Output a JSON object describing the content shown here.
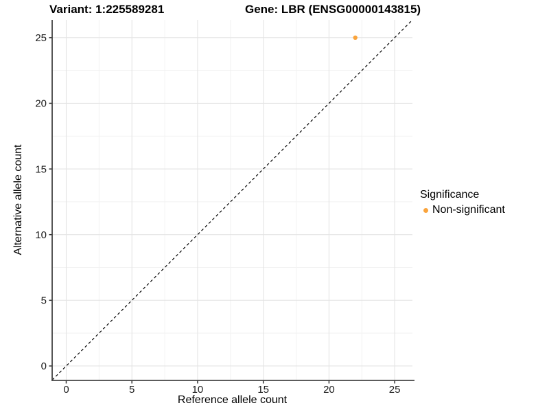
{
  "chart_data": {
    "type": "scatter",
    "titles": {
      "variant": "Variant: 1:225589281",
      "gene": "Gene: LBR (ENSG00000143815)"
    },
    "xlabel": "Reference allele count",
    "ylabel": "Alternative allele count",
    "xlim": [
      -1.07,
      26.35
    ],
    "ylim": [
      -1.1,
      26.35
    ],
    "x_major_ticks": [
      0,
      5,
      10,
      15,
      20,
      25
    ],
    "y_major_ticks": [
      0,
      5,
      10,
      15,
      20,
      25
    ],
    "x_minor_gridlines": [
      2.5,
      7.5,
      12.5,
      17.5,
      22.5
    ],
    "y_minor_gridlines": [
      2.5,
      7.5,
      12.5,
      17.5,
      22.5
    ],
    "grid": "major-and-minor",
    "background": "#ffffff",
    "colors": {
      "major_grid": "#e4e4e4",
      "minor_grid": "#f2f2f2",
      "axis_line": "#444444",
      "tick_mark": "#333333",
      "tick_label": "#1a1a1a",
      "identity_line": "#000000",
      "point": "#FAA43C"
    },
    "series": [
      {
        "name": "Non-significant",
        "color": "#FAA43C",
        "points": [
          [
            22,
            25
          ]
        ]
      }
    ],
    "reference_line": {
      "kind": "identity",
      "slope": 1,
      "intercept": 0,
      "style": "dashed"
    },
    "legend": {
      "title": "Significance",
      "position": "right",
      "items": [
        {
          "label": "Non-significant",
          "color": "#FAA43C"
        }
      ]
    }
  }
}
